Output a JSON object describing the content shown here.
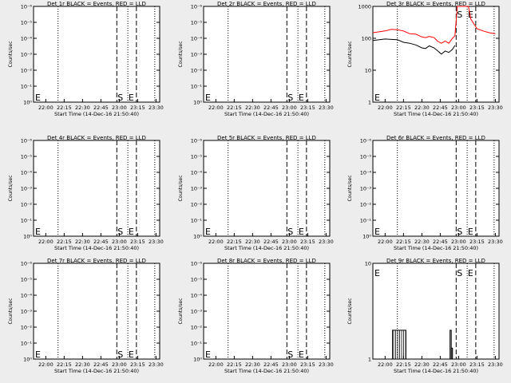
{
  "figure": {
    "xlabel": "Start Time (14-Dec-16 21:50:40)"
  },
  "panels": [
    {
      "title": "Det 1r BLACK = Events, RED = LLD",
      "ylabel": "Counts/sec",
      "yticks": [
        "10⁰",
        "10⁻¹",
        "10⁻²",
        "10⁻³",
        "10⁻⁴",
        "10⁻⁵",
        "10⁻⁶"
      ],
      "xticks": [
        "22:00",
        "22:15",
        "22:30",
        "22:45",
        "23:00",
        "23:15",
        "23:30"
      ],
      "markers": {
        "left": "E",
        "s": "S",
        "e": "E"
      }
    },
    {
      "title": "Det 2r BLACK = Events, RED = LLD",
      "ylabel": "Counts/sec",
      "yticks": [
        "10⁰",
        "10⁻¹",
        "10⁻²",
        "10⁻³",
        "10⁻⁴",
        "10⁻⁵",
        "10⁻⁶"
      ],
      "xticks": [
        "22:00",
        "22:15",
        "22:30",
        "22:45",
        "23:00",
        "23:15",
        "23:30"
      ],
      "markers": {
        "left": "E",
        "s": "S",
        "e": "E"
      }
    },
    {
      "title": "Det 3r BLACK = Events, RED = LLD",
      "ylabel": "Counts/sec",
      "yticks": [
        "1",
        "10",
        "100",
        "1000"
      ],
      "xticks": [
        "22:00",
        "22:15",
        "22:30",
        "22:45",
        "23:00",
        "23:15",
        "23:30"
      ],
      "markers": {
        "left": "E",
        "s": "S",
        "e": "E"
      }
    },
    {
      "title": "Det 4r BLACK = Events, RED = LLD",
      "ylabel": "Counts/sec",
      "yticks": [
        "10⁰",
        "10⁻¹",
        "10⁻²",
        "10⁻³",
        "10⁻⁴",
        "10⁻⁵",
        "10⁻⁶"
      ],
      "xticks": [
        "22:00",
        "22:15",
        "22:30",
        "22:45",
        "23:00",
        "23:15",
        "23:30"
      ],
      "markers": {
        "left": "E",
        "s": "S",
        "e": "E"
      }
    },
    {
      "title": "Det 5r BLACK = Events, RED = LLD",
      "ylabel": "Counts/sec",
      "yticks": [
        "10⁰",
        "10⁻¹",
        "10⁻²",
        "10⁻³",
        "10⁻⁴",
        "10⁻⁵",
        "10⁻⁶"
      ],
      "xticks": [
        "22:00",
        "22:15",
        "22:30",
        "22:45",
        "23:00",
        "23:15",
        "23:30"
      ],
      "markers": {
        "left": "E",
        "s": "S",
        "e": "E"
      }
    },
    {
      "title": "Det 6r BLACK = Events, RED = LLD",
      "ylabel": "Counts/sec",
      "yticks": [
        "10⁰",
        "10⁻¹",
        "10⁻²",
        "10⁻³",
        "10⁻⁴",
        "10⁻⁵",
        "10⁻⁶"
      ],
      "xticks": [
        "22:00",
        "22:15",
        "22:30",
        "22:45",
        "23:00",
        "23:15",
        "23:30"
      ],
      "markers": {
        "left": "E",
        "s": "S",
        "e": "E"
      }
    },
    {
      "title": "Det 7r BLACK = Events, RED = LLD",
      "ylabel": "Counts/sec",
      "yticks": [
        "10⁰",
        "10⁻¹",
        "10⁻²",
        "10⁻³",
        "10⁻⁴",
        "10⁻⁵",
        "10⁻⁶"
      ],
      "xticks": [
        "22:00",
        "22:15",
        "22:30",
        "22:45",
        "23:00",
        "23:15",
        "23:30"
      ],
      "markers": {
        "left": "E",
        "s": "S",
        "e": "E"
      }
    },
    {
      "title": "Det 8r BLACK = Events, RED = LLD",
      "ylabel": "Counts/sec",
      "yticks": [
        "10⁰",
        "10⁻¹",
        "10⁻²",
        "10⁻³",
        "10⁻⁴",
        "10⁻⁵",
        "10⁻⁶"
      ],
      "xticks": [
        "22:00",
        "22:15",
        "22:30",
        "22:45",
        "23:00",
        "23:15",
        "23:30"
      ],
      "markers": {
        "left": "E",
        "s": "S",
        "e": "E"
      }
    },
    {
      "title": "Det 9r BLACK = Events, RED = LLD",
      "ylabel": "Counts/sec",
      "yticks": [
        "1",
        "10"
      ],
      "xticks": [
        "22:00",
        "22:15",
        "22:30",
        "22:45",
        "23:00",
        "23:15",
        "23:30"
      ],
      "markers": {
        "left": "E",
        "s": "S",
        "e": "E"
      }
    }
  ],
  "chart_data": [
    {
      "type": "line",
      "title": "Det 1r BLACK = Events, RED = LLD",
      "xlabel": "Start Time (14-Dec-16 21:50:40)",
      "ylabel": "Counts/sec",
      "yscale": "log",
      "ylim": [
        1,
        1e-06
      ],
      "xlim": [
        "21:50",
        "23:33"
      ],
      "series": [],
      "vlines": [
        {
          "t": "22:10",
          "style": "dotted"
        },
        {
          "t": "22:58",
          "style": "dashed",
          "label": "S"
        },
        {
          "t": "23:07",
          "style": "dotted"
        },
        {
          "t": "23:14",
          "style": "dashed",
          "label": "E"
        },
        {
          "t": "23:29",
          "style": "dotted"
        }
      ]
    },
    {
      "type": "line",
      "title": "Det 2r BLACK = Events, RED = LLD",
      "xlabel": "Start Time (14-Dec-16 21:50:40)",
      "ylabel": "Counts/sec",
      "yscale": "log",
      "ylim": [
        1,
        1e-06
      ],
      "xlim": [
        "21:50",
        "23:33"
      ],
      "series": [],
      "vlines": [
        {
          "t": "22:10",
          "style": "dotted"
        },
        {
          "t": "22:58",
          "style": "dashed",
          "label": "S"
        },
        {
          "t": "23:07",
          "style": "dotted"
        },
        {
          "t": "23:14",
          "style": "dashed",
          "label": "E"
        },
        {
          "t": "23:29",
          "style": "dotted"
        }
      ]
    },
    {
      "type": "line",
      "title": "Det 3r BLACK = Events, RED = LLD",
      "xlabel": "Start Time (14-Dec-16 21:50:40)",
      "ylabel": "Counts/sec",
      "yscale": "log",
      "ylim": [
        1,
        1000
      ],
      "xlim": [
        "21:50",
        "23:33"
      ],
      "colors": {
        "events": "#000000",
        "lld": "#ff0000"
      },
      "series": [
        {
          "name": "Events",
          "x": [
            "21:50",
            "22:00",
            "22:05",
            "22:10",
            "22:15",
            "22:20",
            "22:25",
            "22:30",
            "22:33",
            "22:36",
            "22:40",
            "22:43",
            "22:46",
            "22:49",
            "22:52",
            "22:55",
            "22:57"
          ],
          "y": [
            85,
            95,
            92,
            90,
            75,
            70,
            62,
            50,
            48,
            58,
            50,
            40,
            32,
            40,
            36,
            45,
            60
          ]
        },
        {
          "name": "LLD",
          "x": [
            "21:50",
            "22:00",
            "22:05",
            "22:10",
            "22:15",
            "22:20",
            "22:25",
            "22:30",
            "22:33",
            "22:36",
            "22:40",
            "22:43",
            "22:46",
            "22:49",
            "22:52",
            "22:55",
            "22:57",
            "22:59",
            "23:00",
            "23:08",
            "23:10",
            "23:15",
            "23:20",
            "23:25",
            "23:30"
          ],
          "y": [
            150,
            170,
            190,
            185,
            170,
            140,
            135,
            110,
            105,
            115,
            105,
            80,
            70,
            82,
            70,
            100,
            120,
            1000,
            1000,
            1000,
            400,
            200,
            170,
            150,
            140
          ]
        }
      ],
      "vlines": [
        {
          "t": "22:10",
          "style": "dotted"
        },
        {
          "t": "22:58",
          "style": "dashed",
          "label": "S"
        },
        {
          "t": "23:07",
          "style": "dotted"
        },
        {
          "t": "23:14",
          "style": "dashed",
          "label": "E"
        },
        {
          "t": "23:29",
          "style": "dotted"
        }
      ]
    },
    {
      "type": "line",
      "title": "Det 4r BLACK = Events, RED = LLD",
      "xlabel": "Start Time (14-Dec-16 21:50:40)",
      "ylabel": "Counts/sec",
      "yscale": "log",
      "ylim": [
        1,
        1e-06
      ],
      "xlim": [
        "21:50",
        "23:33"
      ],
      "series": [],
      "vlines": [
        {
          "t": "22:10",
          "style": "dotted"
        },
        {
          "t": "22:58",
          "style": "dashed",
          "label": "S"
        },
        {
          "t": "23:07",
          "style": "dotted"
        },
        {
          "t": "23:14",
          "style": "dashed",
          "label": "E"
        },
        {
          "t": "23:29",
          "style": "dotted"
        }
      ]
    },
    {
      "type": "line",
      "title": "Det 5r BLACK = Events, RED = LLD",
      "xlabel": "Start Time (14-Dec-16 21:50:40)",
      "ylabel": "Counts/sec",
      "yscale": "log",
      "ylim": [
        1,
        1e-06
      ],
      "xlim": [
        "21:50",
        "23:33"
      ],
      "series": [],
      "vlines": [
        {
          "t": "22:10",
          "style": "dotted"
        },
        {
          "t": "22:58",
          "style": "dashed",
          "label": "S"
        },
        {
          "t": "23:07",
          "style": "dotted"
        },
        {
          "t": "23:14",
          "style": "dashed",
          "label": "E"
        },
        {
          "t": "23:29",
          "style": "dotted"
        }
      ]
    },
    {
      "type": "line",
      "title": "Det 6r BLACK = Events, RED = LLD",
      "xlabel": "Start Time (14-Dec-16 21:50:40)",
      "ylabel": "Counts/sec",
      "yscale": "log",
      "ylim": [
        1,
        1e-06
      ],
      "xlim": [
        "21:50",
        "23:33"
      ],
      "series": [],
      "vlines": [
        {
          "t": "22:10",
          "style": "dotted"
        },
        {
          "t": "22:58",
          "style": "dashed",
          "label": "S"
        },
        {
          "t": "23:07",
          "style": "dotted"
        },
        {
          "t": "23:14",
          "style": "dashed",
          "label": "E"
        },
        {
          "t": "23:29",
          "style": "dotted"
        }
      ]
    },
    {
      "type": "line",
      "title": "Det 7r BLACK = Events, RED = LLD",
      "xlabel": "Start Time (14-Dec-16 21:50:40)",
      "ylabel": "Counts/sec",
      "yscale": "log",
      "ylim": [
        1,
        1e-06
      ],
      "xlim": [
        "21:50",
        "23:33"
      ],
      "series": [],
      "vlines": [
        {
          "t": "22:10",
          "style": "dotted"
        },
        {
          "t": "22:58",
          "style": "dashed",
          "label": "S"
        },
        {
          "t": "23:07",
          "style": "dotted"
        },
        {
          "t": "23:14",
          "style": "dashed",
          "label": "E"
        },
        {
          "t": "23:29",
          "style": "dotted"
        }
      ]
    },
    {
      "type": "line",
      "title": "Det 8r BLACK = Events, RED = LLD",
      "xlabel": "Start Time (14-Dec-16 21:50:40)",
      "ylabel": "Counts/sec",
      "yscale": "log",
      "ylim": [
        1,
        1e-06
      ],
      "xlim": [
        "21:50",
        "23:33"
      ],
      "series": [],
      "vlines": [
        {
          "t": "22:10",
          "style": "dotted"
        },
        {
          "t": "22:58",
          "style": "dashed",
          "label": "S"
        },
        {
          "t": "23:07",
          "style": "dotted"
        },
        {
          "t": "23:14",
          "style": "dashed",
          "label": "E"
        },
        {
          "t": "23:29",
          "style": "dotted"
        }
      ]
    },
    {
      "type": "line",
      "title": "Det 9r BLACK = Events, RED = LLD",
      "xlabel": "Start Time (14-Dec-16 21:50:40)",
      "ylabel": "Counts/sec",
      "yscale": "log",
      "ylim": [
        1,
        10
      ],
      "xlim": [
        "21:50",
        "23:33"
      ],
      "colors": {
        "events": "#000000"
      },
      "series": [
        {
          "name": "Events",
          "bars": [
            {
              "from": "22:06",
              "to": "22:17",
              "y": 2
            },
            {
              "from": "22:53",
              "to": "22:54",
              "y": 2
            },
            {
              "from": "22:54",
              "to": "22:55",
              "y": 1.3
            }
          ]
        }
      ],
      "vlines": [
        {
          "t": "22:10",
          "style": "dotted"
        },
        {
          "t": "22:58",
          "style": "dashed",
          "label": "S"
        },
        {
          "t": "23:07",
          "style": "dotted"
        },
        {
          "t": "23:14",
          "style": "dashed",
          "label": "E"
        },
        {
          "t": "23:29",
          "style": "dotted"
        }
      ]
    }
  ]
}
